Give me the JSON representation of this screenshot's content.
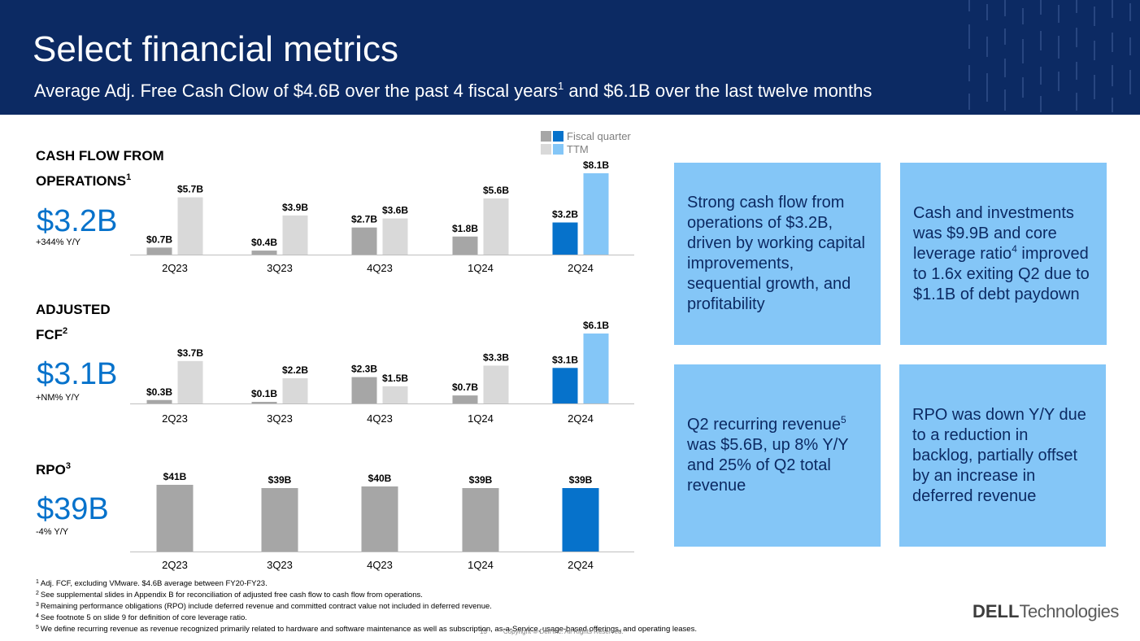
{
  "header": {
    "title": "Select financial metrics",
    "subtitle_pre": "Average Adj. Free Cash Clow of $4.6B over the past 4 fiscal years",
    "subtitle_sup": "1",
    "subtitle_post": " and $6.1B over the last twelve months",
    "background_color": "#0c2a63"
  },
  "legend": {
    "items": [
      {
        "label": "Fiscal quarter",
        "colors": [
          "#a6a6a6",
          "#0672cb"
        ]
      },
      {
        "label": "TTM",
        "colors": [
          "#d9d9d9",
          "#84c6f7"
        ]
      }
    ]
  },
  "colors": {
    "quarter_bar": "#a6a6a6",
    "ttm_bar": "#d9d9d9",
    "highlight_quarter_bar": "#0672cb",
    "highlight_ttm_bar": "#84c6f7",
    "metric_value": "#0672cb",
    "info_box": "#84c6f7"
  },
  "metrics": [
    {
      "heading_line1": "CASH FLOW FROM",
      "heading_line2": "OPERATIONS",
      "heading_sup": "1",
      "value": "$3.2B",
      "change": "+344% Y/Y"
    },
    {
      "heading_line1": "ADJUSTED",
      "heading_line2": "FCF",
      "heading_sup": "2",
      "value": "$3.1B",
      "change": "+NM% Y/Y"
    },
    {
      "heading_line1": "RPO",
      "heading_line2": "",
      "heading_sup": "3",
      "value": "$39B",
      "change": "-4% Y/Y"
    }
  ],
  "chart_data": [
    {
      "type": "bar",
      "title": "CASH FLOW FROM OPERATIONS",
      "categories": [
        "2Q23",
        "3Q23",
        "4Q23",
        "1Q24",
        "2Q24"
      ],
      "series": [
        {
          "name": "Fiscal quarter",
          "values": [
            0.7,
            0.4,
            2.7,
            1.8,
            3.2
          ],
          "labels": [
            "$0.7B",
            "$0.4B",
            "$2.7B",
            "$1.8B",
            "$3.2B"
          ]
        },
        {
          "name": "TTM",
          "values": [
            5.7,
            3.9,
            3.6,
            5.6,
            8.1
          ],
          "labels": [
            "$5.7B",
            "$3.9B",
            "$3.6B",
            "$5.6B",
            "$8.1B"
          ]
        }
      ],
      "ylim": [
        0,
        8.1
      ],
      "highlight_category": "2Q24"
    },
    {
      "type": "bar",
      "title": "ADJUSTED FCF",
      "categories": [
        "2Q23",
        "3Q23",
        "4Q23",
        "1Q24",
        "2Q24"
      ],
      "series": [
        {
          "name": "Fiscal quarter",
          "values": [
            0.3,
            0.1,
            2.3,
            0.7,
            3.1
          ],
          "labels": [
            "$0.3B",
            "$0.1B",
            "$2.3B",
            "$0.7B",
            "$3.1B"
          ]
        },
        {
          "name": "TTM",
          "values": [
            3.7,
            2.2,
            1.5,
            3.3,
            6.1
          ],
          "labels": [
            "$3.7B",
            "$2.2B",
            "$1.5B",
            "$3.3B",
            "$6.1B"
          ]
        }
      ],
      "ylim": [
        0,
        6.1
      ],
      "highlight_category": "2Q24"
    },
    {
      "type": "bar",
      "title": "RPO",
      "categories": [
        "2Q23",
        "3Q23",
        "4Q23",
        "1Q24",
        "2Q24"
      ],
      "series": [
        {
          "name": "Fiscal quarter",
          "values": [
            41,
            39,
            40,
            39,
            39
          ],
          "labels": [
            "$41B",
            "$39B",
            "$40B",
            "$39B",
            "$39B"
          ]
        }
      ],
      "ylim": [
        0,
        41
      ],
      "highlight_category": "2Q24"
    }
  ],
  "info_boxes": [
    {
      "text_pre": "Strong cash flow from operations of $3.2B, driven by working capital improvements, sequential growth, and profitability",
      "sup": "",
      "text_post": ""
    },
    {
      "text_pre": "Cash and investments was $9.9B and core leverage ratio",
      "sup": "4",
      "text_post": " improved to 1.6x exiting Q2 due to $1.1B of debt paydown"
    },
    {
      "text_pre": "Q2 recurring revenue",
      "sup": "5",
      "text_post": " was $5.6B, up 8% Y/Y and 25% of Q2 total revenue"
    },
    {
      "text_pre": "RPO was down Y/Y due to a reduction in backlog, partially offset by an increase in deferred revenue",
      "sup": "",
      "text_post": ""
    }
  ],
  "footnotes": [
    {
      "num": "1",
      "text": "Adj. FCF, excluding VMware. $4.6B average between FY20-FY23."
    },
    {
      "num": "2",
      "text": "See supplemental slides in Appendix B for reconciliation of adjusted free cash flow to cash flow from operations."
    },
    {
      "num": "3",
      "text": "Remaining performance obligations (RPO) include deferred revenue and committed contract value not included in deferred revenue."
    },
    {
      "num": "4",
      "text": "See footnote 5 on slide 9 for definition of core leverage ratio."
    },
    {
      "num": "5",
      "text": "We define recurring revenue as revenue recognized primarily related to hardware and software maintenance as well as subscription, as-a-Service, usage-based offerings, and operating leases."
    }
  ],
  "footer": {
    "page_number": "13",
    "copyright": "Copyright © Dell Inc. All Rights Reserved.",
    "logo_bold": "DELL",
    "logo_light": "Technologies"
  }
}
